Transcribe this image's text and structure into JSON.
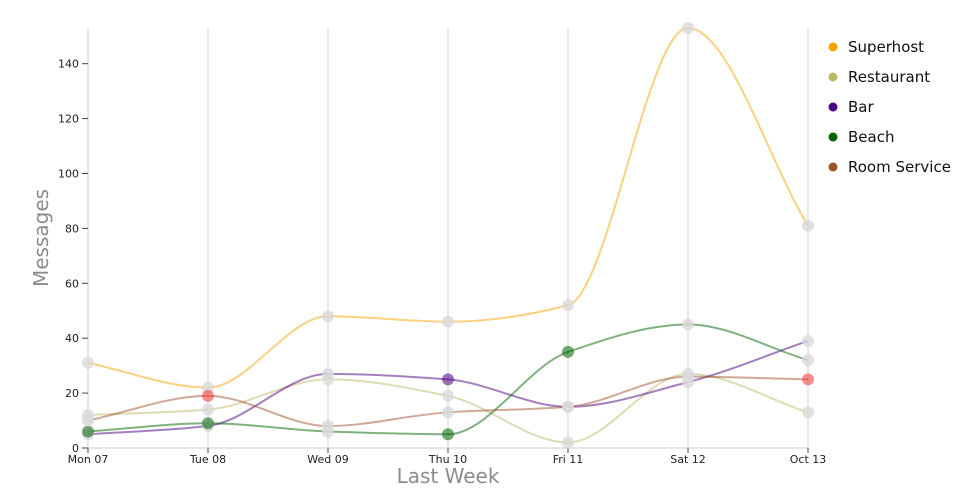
{
  "chart_data": {
    "type": "line",
    "title": "",
    "xlabel": "Last Week",
    "ylabel": "Messages",
    "categories": [
      "Mon 07",
      "Tue 08",
      "Wed 09",
      "Thu 10",
      "Fri 11",
      "Sat 12",
      "Oct 13"
    ],
    "ylim": [
      0,
      153
    ],
    "yticks": [
      0,
      20,
      40,
      60,
      80,
      100,
      120,
      140
    ],
    "grid": "vertical",
    "legend_position": "top-right",
    "series": [
      {
        "name": "Superhost",
        "color": "#f5a300",
        "values": [
          31,
          22,
          48,
          46,
          52,
          153,
          81
        ],
        "highlight": []
      },
      {
        "name": "Restaurant",
        "color": "#bdb76b",
        "values": [
          12,
          14,
          25,
          19,
          2,
          27,
          13
        ],
        "highlight": []
      },
      {
        "name": "Bar",
        "color": "#4b0082",
        "values": [
          5,
          8,
          27,
          25,
          15,
          24,
          39
        ],
        "highlight": [
          3
        ]
      },
      {
        "name": "Beach",
        "color": "#006400",
        "values": [
          6,
          9,
          6,
          5,
          35,
          45,
          32
        ],
        "highlight": [
          0,
          1,
          3,
          4
        ]
      },
      {
        "name": "Room Service",
        "color": "#a0522d",
        "values": [
          10,
          19,
          8,
          13,
          15,
          26,
          25
        ],
        "highlight": [
          1,
          6
        ]
      }
    ]
  }
}
